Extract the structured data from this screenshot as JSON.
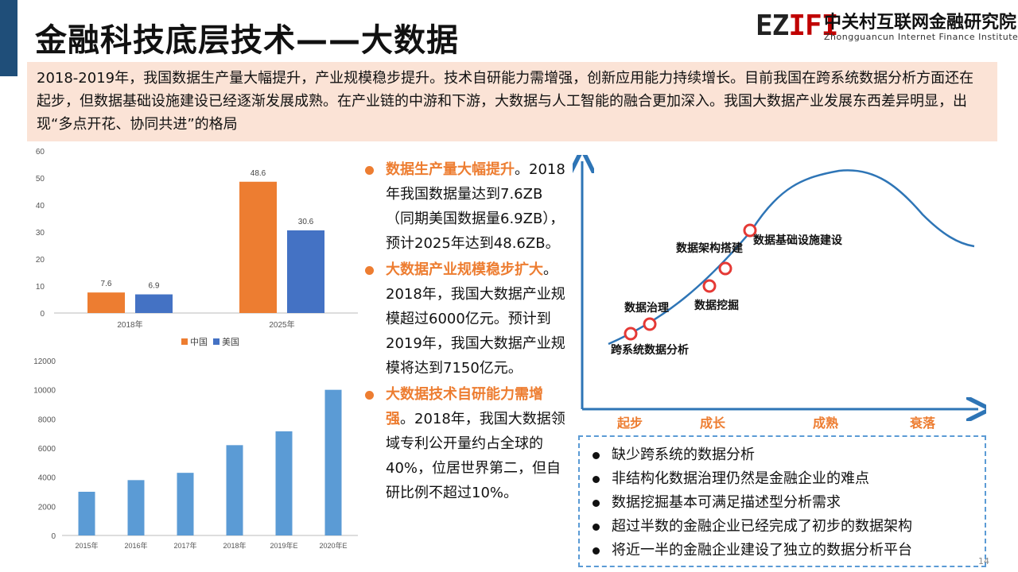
{
  "header": {
    "title": "金融科技底层技术——大数据",
    "logo": {
      "mark_prefix": "EZ",
      "mark_suffix": "IFI",
      "name_cn": "中关村互联网金融研究院",
      "name_en": "Zhongguancun Internet Finance Institute"
    }
  },
  "summary": "2018-2019年，我国数据生产量大幅提升，产业规模稳步提升。技术自研能力需增强，创新应用能力持续增长。目前我国在跨系统数据分析方面还在起步，但数据基础设施建设已经逐渐发展成熟。在产业链的中游和下游，大数据与人工智能的融合更加深入。我国大数据产业发展东西差异明显，出现“多点开花、协同共进”的格局",
  "chart_data": [
    {
      "type": "bar",
      "categories": [
        "2018年",
        "2025年"
      ],
      "series": [
        {
          "name": "中国",
          "values": [
            7.6,
            48.6
          ],
          "color": "#ed7d31"
        },
        {
          "name": "美国",
          "values": [
            6.9,
            30.6
          ],
          "color": "#4472c4"
        }
      ],
      "ylim": [
        0,
        60
      ],
      "yticks": [
        0,
        10,
        20,
        30,
        40,
        50,
        60
      ],
      "legend": "bottom",
      "data_labels": true
    },
    {
      "type": "bar",
      "categories": [
        "2015年",
        "2016年",
        "2017年",
        "2018年",
        "2019年E",
        "2020年E"
      ],
      "values": [
        3000,
        3800,
        4300,
        6200,
        7150,
        10000
      ],
      "color": "#5b9bd5",
      "ylim": [
        0,
        12000
      ],
      "yticks": [
        0,
        2000,
        4000,
        6000,
        8000,
        10000,
        12000
      ]
    }
  ],
  "bullets": [
    {
      "highlight": "数据生产量大幅提升",
      "text": "。2018年我国数据量达到7.6ZB（同期美国数据量6.9ZB），预计2025年达到48.6ZB。"
    },
    {
      "highlight": "大数据产业规模稳步扩大",
      "text": "。2018年，我国大数据产业规模超过6000亿元。预计到2019年，我国大数据产业规模将达到7150亿元。"
    },
    {
      "highlight": "大数据技术自研能力需增强",
      "text": "。2018年，我国大数据领域专利公开量约占全球的40%，位居世界第二，但自研比例不超过10%。"
    }
  ],
  "maturity_curve": {
    "stages": [
      "起步",
      "成长",
      "成熟",
      "衰落"
    ],
    "points": [
      "跨系统数据分析",
      "数据治理",
      "数据挖掘",
      "数据架构搭建",
      "数据基础设施建设"
    ],
    "stage_color": "#ed7d31",
    "curve_color": "#2e75b6",
    "marker_color": "#e53935"
  },
  "findings": [
    "缺少跨系统的数据分析",
    "非结构化数据治理仍然是金融企业的难点",
    "数据挖掘基本可满足描述型分析需求",
    "超过半数的金融企业已经完成了初步的数据架构",
    "将近一半的金融企业建设了独立的数据分析平台"
  ],
  "page_number": "14"
}
